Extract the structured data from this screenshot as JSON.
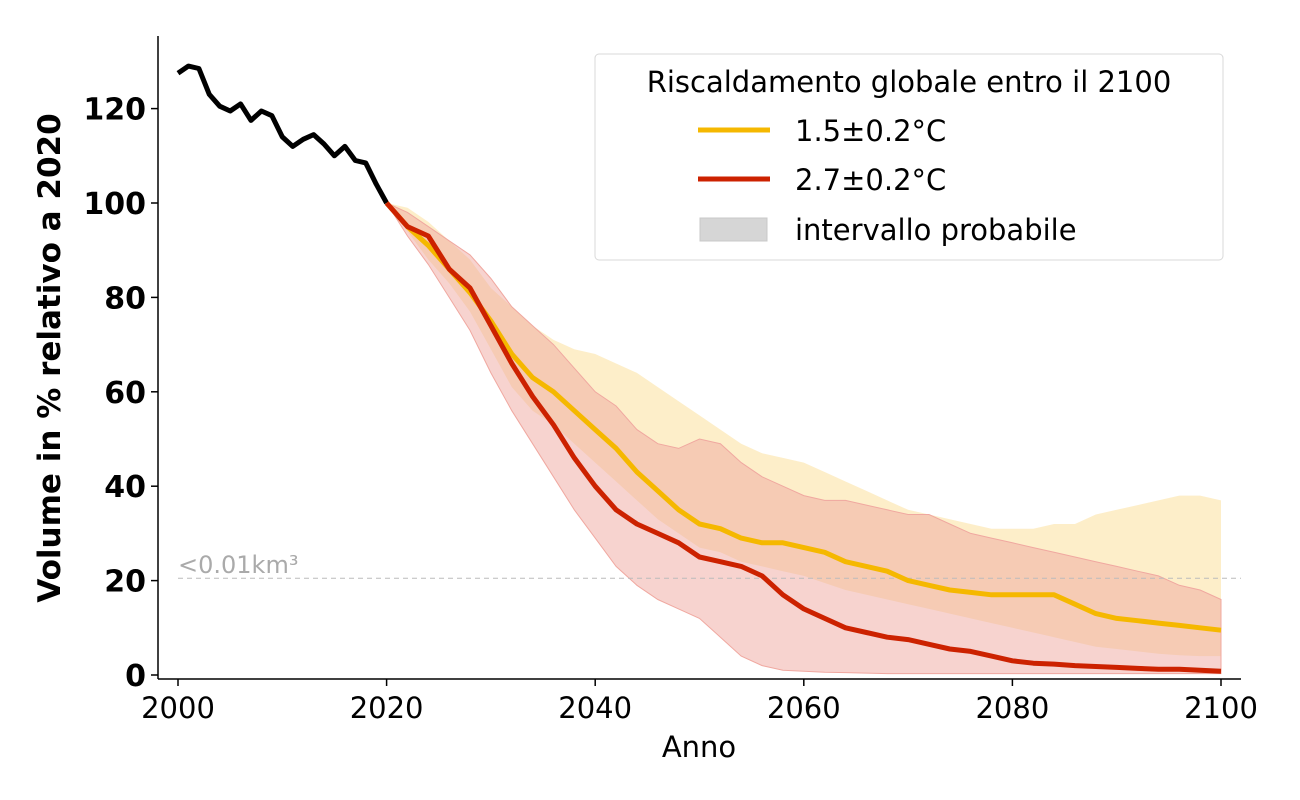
{
  "chart_data": {
    "type": "line",
    "xlabel": "Anno",
    "ylabel": "Volume in % relativo a 2020",
    "xlim": [
      2000,
      2100
    ],
    "ylim": [
      0,
      135
    ],
    "x_ticks": [
      "2000",
      "2020",
      "2040",
      "2060",
      "2080",
      "2100"
    ],
    "y_ticks": [
      "0",
      "20",
      "40",
      "60",
      "80",
      "100",
      "120"
    ],
    "grid": false,
    "legend": {
      "title": "Riscaldamento globale entro il 2100",
      "placement": "top-right",
      "entries": [
        "1.5±0.2°C",
        "2.7±0.2°C",
        "intervallo probabile"
      ]
    },
    "annotation": {
      "text": "<0.01km³",
      "y": 20.5
    },
    "colors": {
      "historical": "#000000",
      "s15": "#f5b800",
      "s15_band": "#fdebc0",
      "s27": "#cc2200",
      "s27_band": "#f0a8a0",
      "overlap_band": "#f4c8a0",
      "threshold": "#bbbbbb"
    },
    "historical": {
      "x": [
        2000,
        2001,
        2002,
        2003,
        2004,
        2005,
        2006,
        2007,
        2008,
        2009,
        2010,
        2011,
        2012,
        2013,
        2014,
        2015,
        2016,
        2017,
        2018,
        2019,
        2020
      ],
      "y": [
        127.5,
        129,
        128.5,
        123,
        120.5,
        119.5,
        121,
        117.5,
        119.5,
        118.5,
        114,
        112,
        113.5,
        114.5,
        112.5,
        110,
        112,
        109,
        108.5,
        104,
        100
      ]
    },
    "series": [
      {
        "name": "1.5±0.2°C",
        "x": [
          2020,
          2022,
          2024,
          2026,
          2028,
          2030,
          2032,
          2034,
          2036,
          2038,
          2040,
          2042,
          2044,
          2046,
          2048,
          2050,
          2052,
          2054,
          2056,
          2058,
          2060,
          2062,
          2064,
          2066,
          2068,
          2070,
          2072,
          2074,
          2076,
          2078,
          2080,
          2082,
          2084,
          2086,
          2088,
          2090,
          2092,
          2094,
          2096,
          2098,
          2100
        ],
        "values": [
          100,
          95,
          91,
          86,
          81,
          75,
          68,
          63,
          60,
          56,
          52,
          48,
          43,
          39,
          35,
          32,
          31,
          29,
          28,
          28,
          27,
          26,
          24,
          23,
          22,
          20,
          19,
          18,
          17.5,
          17,
          17,
          17,
          17,
          15,
          13,
          12,
          11.5,
          11,
          10.5,
          10,
          9.5
        ],
        "lower": [
          100,
          94,
          88,
          83,
          77,
          69,
          61,
          56,
          53,
          49,
          45,
          41,
          37,
          33,
          30,
          27,
          26,
          24,
          23,
          22,
          21,
          19.5,
          18,
          17,
          16,
          15,
          14,
          13,
          12,
          11,
          10,
          9,
          8,
          7,
          6,
          5.5,
          5,
          4.5,
          4.2,
          4,
          4
        ],
        "upper": [
          100,
          99,
          96,
          92,
          88,
          82,
          78,
          74,
          71,
          69,
          68,
          66,
          64,
          61,
          58,
          55,
          52,
          49,
          47,
          46,
          45,
          43,
          41,
          39,
          37,
          35,
          34,
          33,
          32,
          31,
          31,
          31,
          32,
          32,
          34,
          35,
          36,
          37,
          38,
          38,
          37
        ]
      },
      {
        "name": "2.7±0.2°C",
        "x": [
          2020,
          2022,
          2024,
          2026,
          2028,
          2030,
          2032,
          2034,
          2036,
          2038,
          2040,
          2042,
          2044,
          2046,
          2048,
          2050,
          2052,
          2054,
          2056,
          2058,
          2060,
          2062,
          2064,
          2066,
          2068,
          2070,
          2072,
          2074,
          2076,
          2078,
          2080,
          2082,
          2084,
          2086,
          2088,
          2090,
          2092,
          2094,
          2096,
          2098,
          2100
        ],
        "values": [
          100,
          95,
          93,
          86,
          82,
          74,
          66,
          59,
          53,
          46,
          40,
          35,
          32,
          30,
          28,
          25,
          24,
          23,
          21,
          17,
          14,
          12,
          10,
          9,
          8,
          7.5,
          6.5,
          5.5,
          5,
          4,
          3,
          2.5,
          2.3,
          2,
          1.8,
          1.6,
          1.4,
          1.2,
          1.2,
          1,
          0.8
        ],
        "lower": [
          100,
          93,
          87,
          80,
          73,
          64,
          56,
          49,
          42,
          35,
          29,
          23,
          19,
          16,
          14,
          12,
          8,
          4,
          2,
          1,
          0.8,
          0.6,
          0.5,
          0.4,
          0.3,
          0.3,
          0.3,
          0.3,
          0.3,
          0.3,
          0.3,
          0.3,
          0.3,
          0.3,
          0.3,
          0.3,
          0.3,
          0.3,
          0.3,
          0.3,
          0.3
        ],
        "upper": [
          100,
          98,
          95,
          92,
          89,
          84,
          78,
          74,
          70,
          65,
          60,
          57,
          52,
          49,
          48,
          50,
          49,
          45,
          42,
          40,
          38,
          37,
          37,
          36,
          35,
          34,
          34,
          32,
          30,
          29,
          28,
          27,
          26,
          25,
          24,
          23,
          22,
          21,
          19,
          18,
          16
        ]
      }
    ]
  }
}
